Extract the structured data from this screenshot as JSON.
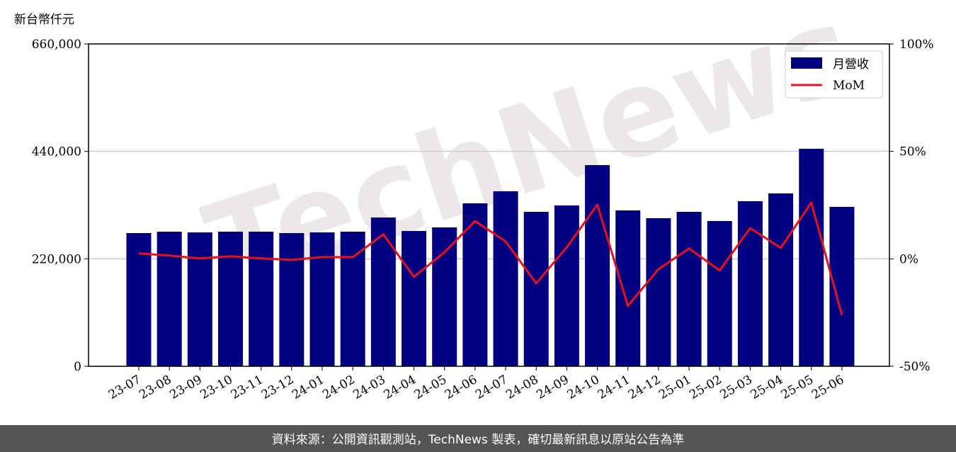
{
  "chart_data": {
    "type": "bar_line",
    "y_label": "新台幣仟元",
    "categories": [
      "23-07",
      "23-08",
      "23-09",
      "23-10",
      "23-11",
      "23-12",
      "24-01",
      "24-02",
      "24-03",
      "24-04",
      "24-05",
      "24-06",
      "24-07",
      "24-08",
      "24-09",
      "24-10",
      "24-11",
      "24-12",
      "25-01",
      "25-02",
      "25-03",
      "25-04",
      "25-05",
      "25-06"
    ],
    "series": [
      {
        "name": "月營收",
        "color": "#000080",
        "type": "bar",
        "values": [
          272700,
          275600,
          274100,
          275600,
          275600,
          272700,
          274100,
          275600,
          304600,
          277000,
          284300,
          333600,
          358300,
          316200,
          329300,
          411900,
          319100,
          303200,
          316200,
          297400,
          338000,
          353900,
          445300,
          326400
        ]
      },
      {
        "name": "MoM",
        "color": "#e8101a",
        "type": "line",
        "axis": "y2",
        "values": [
          2.5,
          1.5,
          0.2,
          1.2,
          0.2,
          -0.5,
          0.8,
          0.8,
          11.4,
          -8.4,
          3.1,
          17.6,
          8.1,
          -11.4,
          5.4,
          25.2,
          -21.9,
          -4.8,
          4.8,
          -5.4,
          14.3,
          5.1,
          26.2,
          -26.2
        ]
      }
    ],
    "ylim": [
      0,
      660000
    ],
    "yticks": [
      0,
      {
        "value": 220000,
        "label": "220,000"
      },
      {
        "value": 440000,
        "label": "440,000"
      },
      {
        "value": 660000,
        "label": "660,000"
      }
    ],
    "y2lim": [
      -50,
      100
    ],
    "y2ticks": [
      {
        "value": -50,
        "label": "-50%"
      },
      {
        "value": 0,
        "label": "0%"
      },
      {
        "value": 50,
        "label": "50%"
      },
      {
        "value": 100,
        "label": "100%"
      }
    ],
    "grid": true,
    "legend": "upper right",
    "watermark": "TechNews",
    "footer": "資料來源：公開資訊觀測站，TechNews 製表，確切最新訊息以原站公告為準"
  }
}
